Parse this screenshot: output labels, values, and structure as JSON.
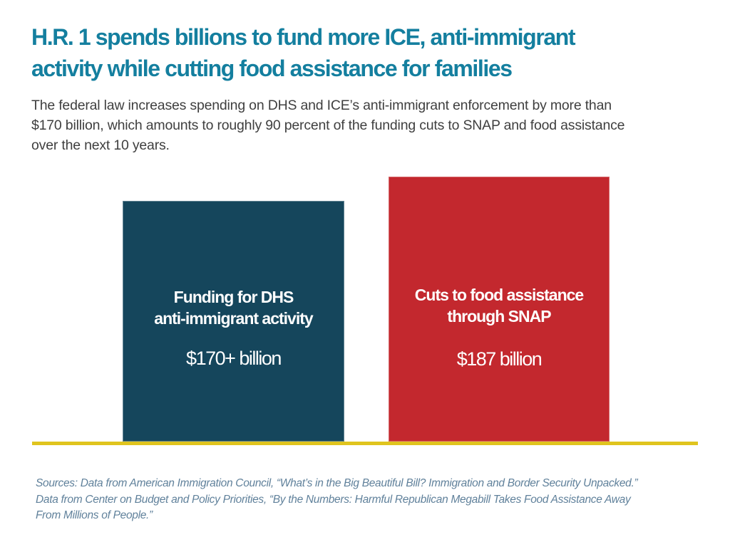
{
  "title": {
    "line1": "H.R. 1 spends billions to fund more ICE, anti-immigrant",
    "line2": "activity while cutting food assistance for families",
    "color": "#147f9f"
  },
  "subtitle": {
    "lines": [
      "The federal law increases spending on DHS and ICE’s anti-immigrant enforcement by more than",
      "$170 billion, which amounts to roughly 90 percent of the funding cuts to SNAP and food assistance",
      "over the next 10 years."
    ]
  },
  "chart_data": {
    "type": "bar",
    "categories": [
      "Funding for DHS anti-immigrant activity",
      "Cuts to food assistance through SNAP"
    ],
    "values": [
      170,
      187
    ],
    "value_labels": [
      "$170+ billion",
      "$187 billion"
    ],
    "unit": "billions of US dollars",
    "colors": [
      "#15465c",
      "#c3282e"
    ],
    "baseline_color": "#e0c41e",
    "title": "H.R. 1 spends billions to fund more ICE, anti-immigrant activity while cutting food assistance for families",
    "xlabel": "",
    "ylabel": "",
    "axes": "none — labels and values printed inside bars",
    "grid": false,
    "legend": "none"
  },
  "bars": [
    {
      "label_line1": "Funding for DHS",
      "label_line2": "anti-immigrant activity",
      "value": "$170+ billion"
    },
    {
      "label_line1": "Cuts to food assistance",
      "label_line2": "through SNAP",
      "value": "$187 billion"
    }
  ],
  "sources": {
    "lines": [
      "Sources: Data from American Immigration Council, “What’s in the Big Beautiful Bill? Immigration and Border Security Unpacked.”",
      "Data from Center on Budget and Policy Priorities, “By the Numbers: Harmful Republican Megabill Takes Food Assistance Away",
      "From Millions of People.”"
    ]
  }
}
